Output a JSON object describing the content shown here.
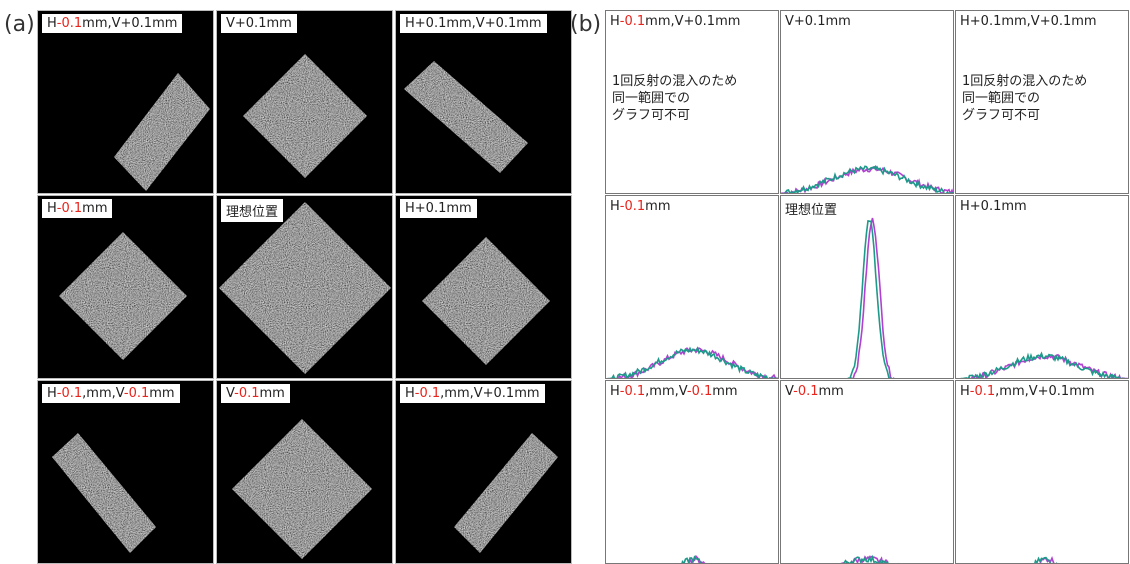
{
  "highlight_color": "#e8241c",
  "panel_a": {
    "label": "(a)",
    "cells": [
      {
        "label": [
          "H",
          "-0.1",
          "mm,V+0.1mm"
        ]
      },
      {
        "label": [
          "V+0.1mm"
        ]
      },
      {
        "label": [
          "H+0.1mm,V+0.1mm"
        ]
      },
      {
        "label": [
          "H",
          "-0.1",
          "mm"
        ]
      },
      {
        "label": [
          "理想位置"
        ]
      },
      {
        "label": [
          "H+0.1mm"
        ]
      },
      {
        "label": [
          "H",
          "-0.1",
          ",mm,V",
          "-0.1",
          "mm"
        ]
      },
      {
        "label": [
          "V",
          "-0.1",
          "mm"
        ]
      },
      {
        "label": [
          "H",
          "-0.1",
          ",mm,V+0.1mm"
        ]
      }
    ]
  },
  "panel_b": {
    "label": "(b)",
    "cells": [
      {
        "label": [
          "H",
          "-0.1",
          "mm,V+0.1mm"
        ],
        "note": [
          "1回反射の混入のため",
          "同一範囲での",
          "グラフ可不可"
        ]
      },
      {
        "label": [
          "V+0.1mm"
        ]
      },
      {
        "label": [
          "H+0.1mm,V+0.1mm"
        ],
        "note": [
          "1回反射の混入のため",
          "同一範囲での",
          "グラフ可不可"
        ]
      },
      {
        "label": [
          "H",
          "-0.1",
          "mm"
        ]
      },
      {
        "label": [
          "理想位置"
        ]
      },
      {
        "label": [
          "H+0.1mm"
        ]
      },
      {
        "label": [
          "H",
          "-0.1",
          ",mm,V",
          "-0.1",
          "mm"
        ]
      },
      {
        "label": [
          "V",
          "-0.1",
          "mm"
        ]
      },
      {
        "label": [
          "H",
          "-0.1",
          ",mm,V+0.1mm"
        ]
      }
    ]
  }
}
